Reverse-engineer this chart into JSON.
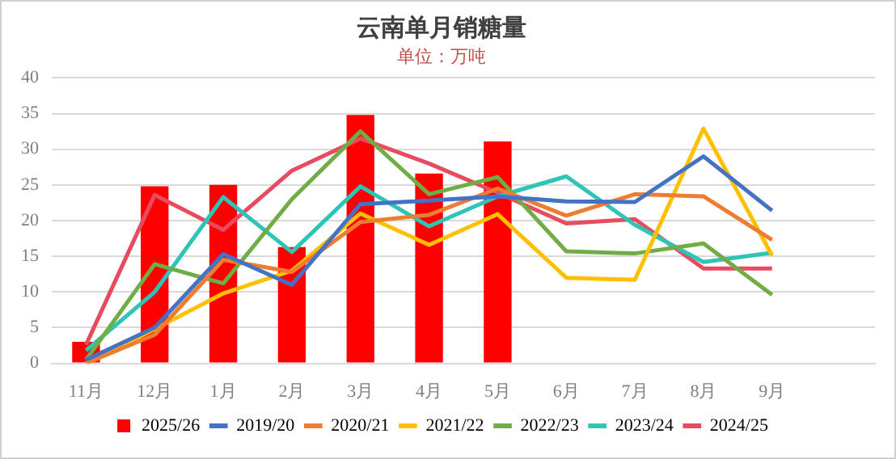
{
  "chart_data": {
    "type": "bar",
    "title": "云南单月销糖量",
    "subtitle": "单位：万吨",
    "categories": [
      "11月",
      "12月",
      "1月",
      "2月",
      "3月",
      "4月",
      "5月",
      "6月",
      "7月",
      "8月",
      "9月",
      null
    ],
    "series": [
      {
        "name": "2025/26",
        "color": "#ff0000",
        "values": [
          3.0,
          24.8,
          25.0,
          16.3,
          34.8,
          26.6,
          31.1,
          null,
          null,
          null,
          null,
          null
        ]
      },
      {
        "name": "2019/20",
        "type": "line",
        "color": "#4472c4",
        "values": [
          0.5,
          5,
          15.3,
          11,
          22.3,
          22.8,
          23.4,
          22.7,
          22.6,
          29,
          21.4,
          null
        ]
      },
      {
        "name": "2020/21",
        "type": "line",
        "color": "#ed7d31",
        "values": [
          0,
          4,
          14.5,
          12.8,
          19.8,
          20.8,
          24.5,
          20.7,
          23.7,
          23.4,
          17.3,
          null
        ]
      },
      {
        "name": "2021/22",
        "type": "line",
        "color": "#ffc000",
        "values": [
          0,
          4.8,
          9.8,
          13,
          21,
          16.6,
          20.9,
          12,
          11.7,
          32.9,
          15.1,
          null
        ]
      },
      {
        "name": "2022/23",
        "type": "line",
        "color": "#70ad47",
        "values": [
          0.5,
          13.9,
          11.2,
          23,
          32.5,
          23.7,
          26.1,
          15.7,
          15.4,
          16.8,
          9.6,
          null
        ]
      },
      {
        "name": "2023/24",
        "type": "line",
        "color": "#2ec4b6",
        "values": [
          1.8,
          10,
          23.3,
          15.6,
          24.8,
          19.2,
          23.4,
          26.2,
          19.4,
          14.2,
          15.5,
          null
        ]
      },
      {
        "name": "2024/25",
        "type": "line",
        "color": "#e84a5f",
        "values": [
          2.6,
          23.6,
          18.7,
          27,
          31.5,
          28,
          23.9,
          19.6,
          20.2,
          13.3,
          13.3,
          null
        ]
      }
    ],
    "ylim": [
      0,
      40
    ],
    "yticks": [
      0,
      5,
      10,
      15,
      20,
      25,
      30,
      35,
      40
    ],
    "grid": "y",
    "legend": "bottom",
    "marker": "none",
    "line_style": "solid"
  }
}
